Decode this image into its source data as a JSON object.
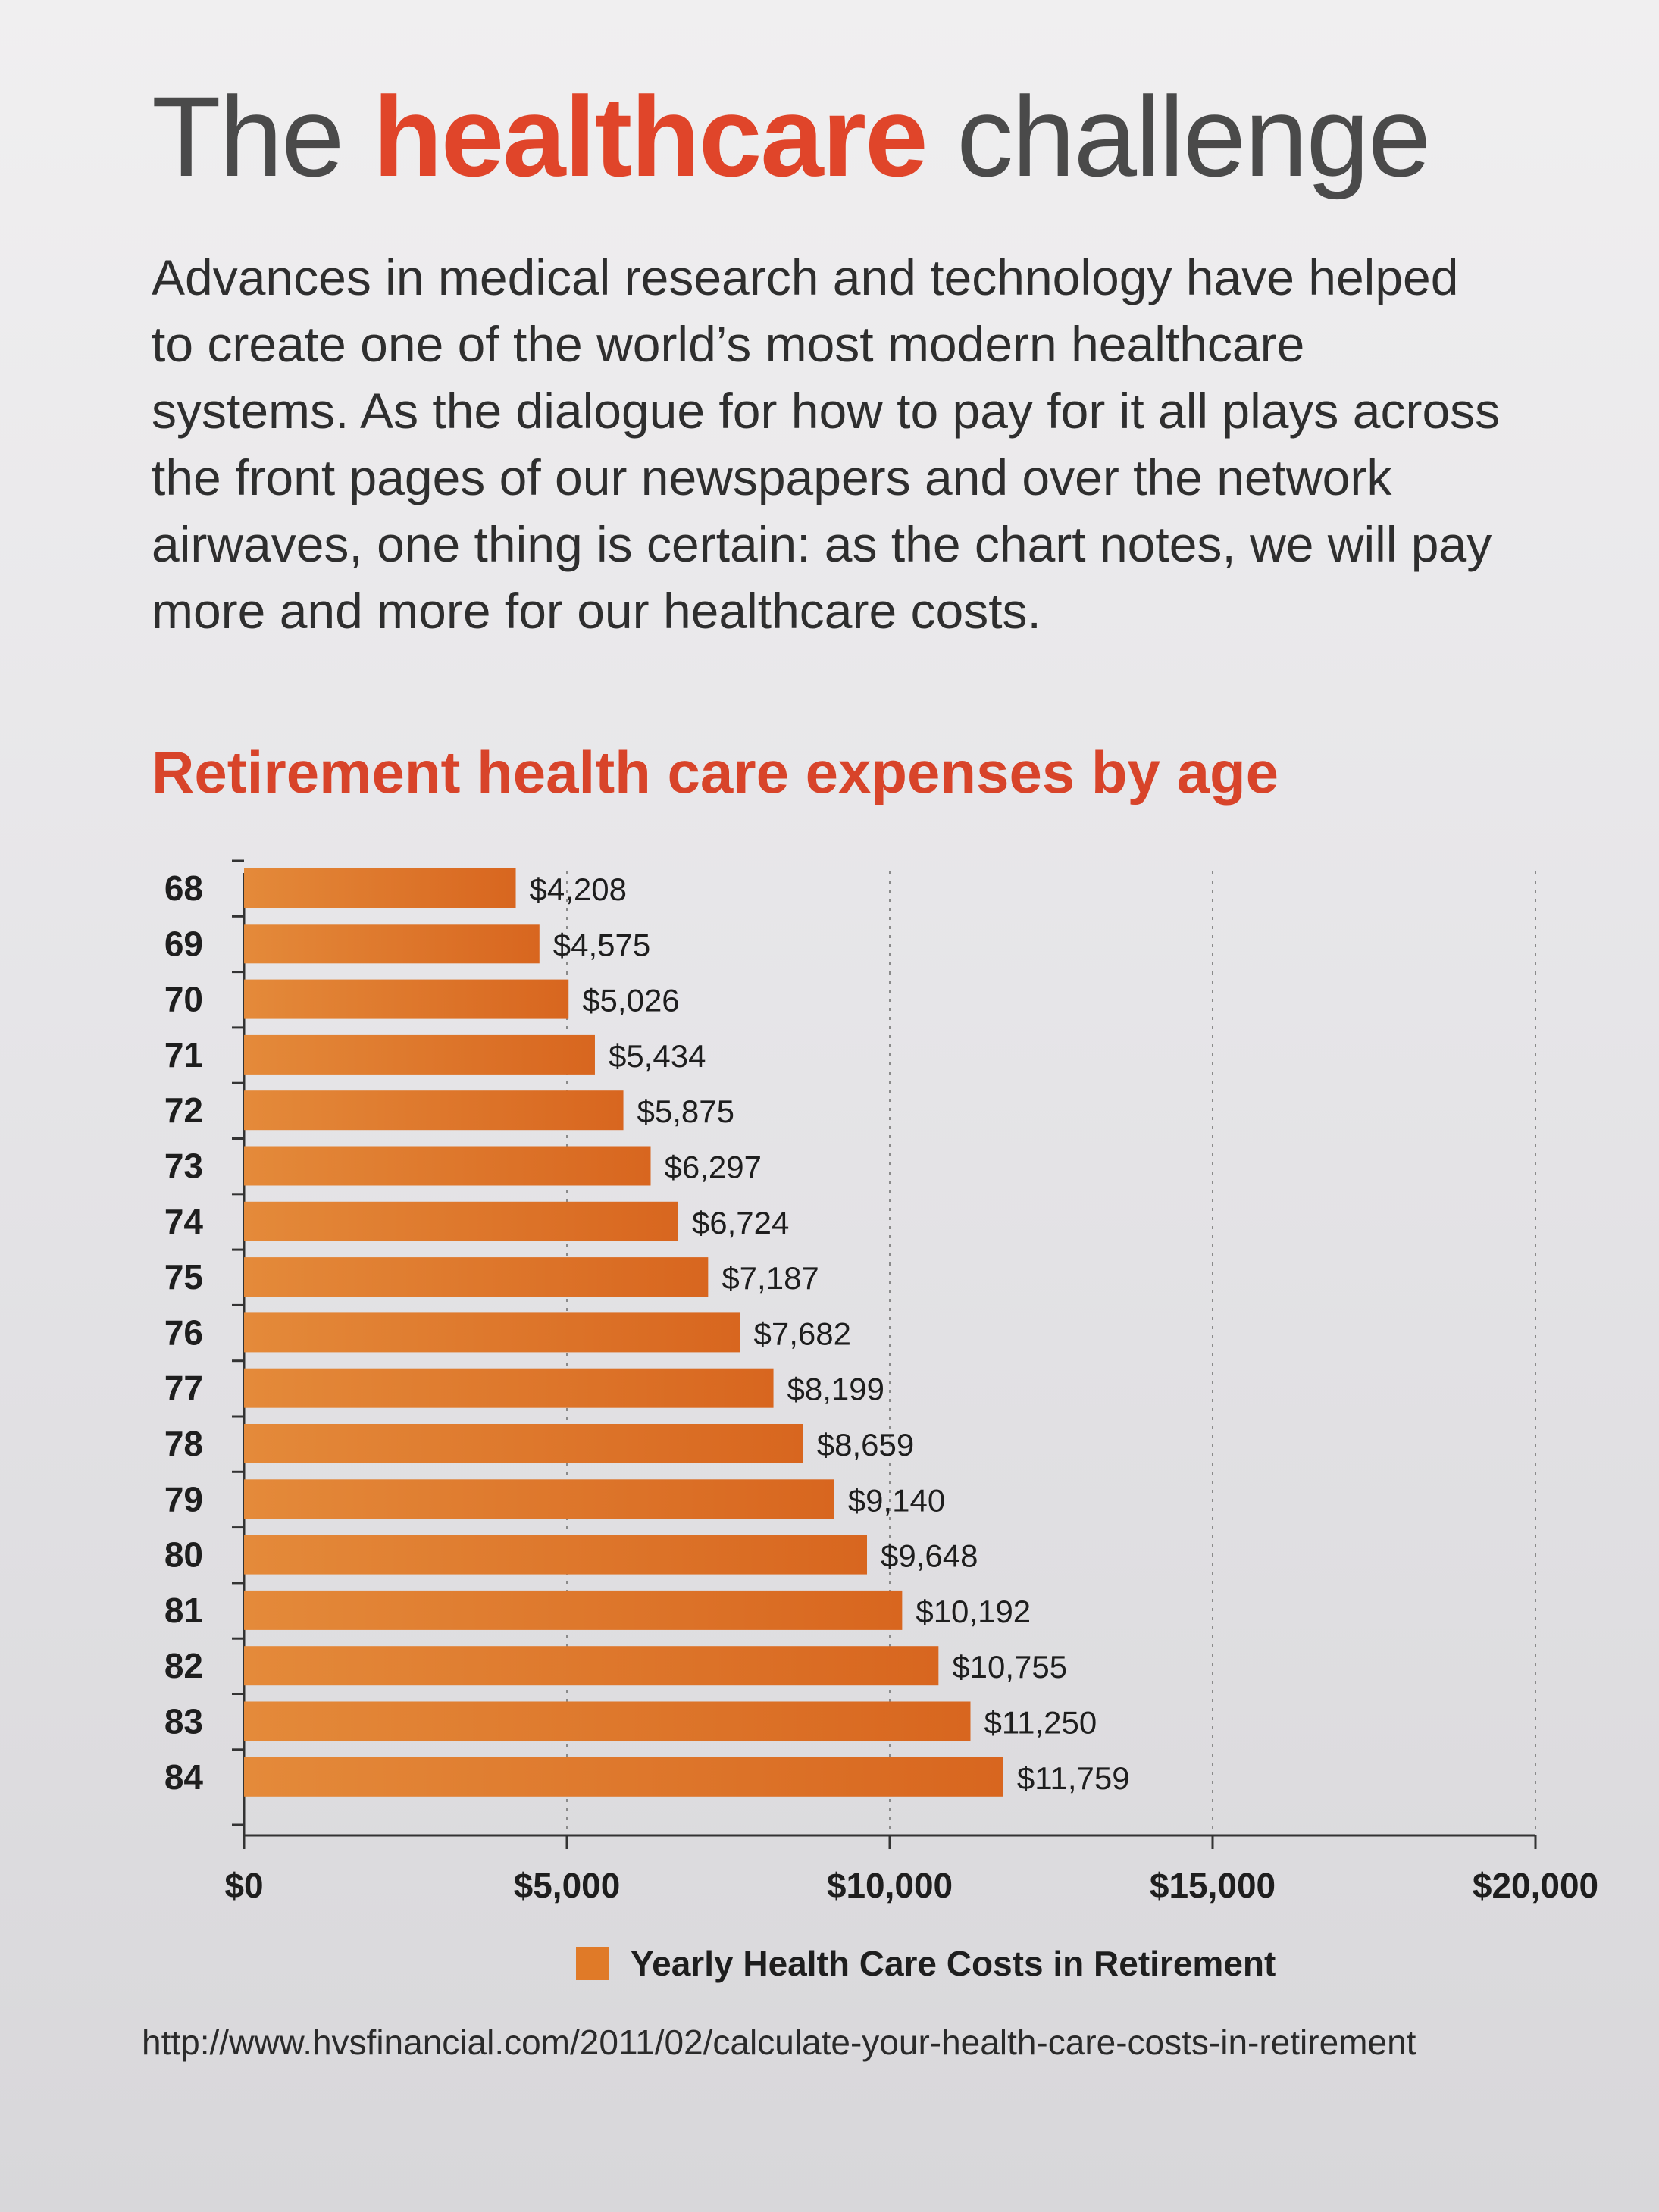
{
  "title": {
    "prefix": "The ",
    "highlight": "healthcare",
    "suffix": " challenge"
  },
  "intro": "Advances in medical research and technology have helped to create one of the world’s most modern healthcare systems. As the dialogue for how to pay for it all plays across the front pages of our newspapers and over the network airwaves, one thing is certain: as the chart notes, we will pay more and more for our healthcare costs.",
  "source_url": "http://www.hvsfinancial.com/2011/02/calculate-your-health-care-costs-in-retirement",
  "colors": {
    "accent": "#d8442a",
    "bar": "#e07a28",
    "bar_dark": "#c9601c"
  },
  "chart_data": {
    "type": "bar",
    "orientation": "horizontal",
    "title": "Retirement health care expenses by age",
    "categories": [
      "68",
      "69",
      "70",
      "71",
      "72",
      "73",
      "74",
      "75",
      "76",
      "77",
      "78",
      "79",
      "80",
      "81",
      "82",
      "83",
      "84"
    ],
    "series": [
      {
        "name": "Yearly Health Care Costs in Retirement",
        "values": [
          4208,
          4575,
          5026,
          5434,
          5875,
          6297,
          6724,
          7187,
          7682,
          8199,
          8659,
          9140,
          9648,
          10192,
          10755,
          11250,
          11759
        ],
        "labels": [
          "$4,208",
          "$4,575",
          "$5,026",
          "$5,434",
          "$5,875",
          "$6,297",
          "$6,724",
          "$7,187",
          "$7,682",
          "$8,199",
          "$8,659",
          "$9,140",
          "$9,648",
          "$10,192",
          "$10,755",
          "$11,250",
          "$11,759"
        ]
      }
    ],
    "xlim": [
      0,
      20000
    ],
    "x_ticks": [
      0,
      5000,
      10000,
      15000,
      20000
    ],
    "x_tick_labels": [
      "$0",
      "$5,000",
      "$10,000",
      "$15,000",
      "$20,000"
    ],
    "grid": "vertical dotted",
    "legend": "bottom"
  }
}
